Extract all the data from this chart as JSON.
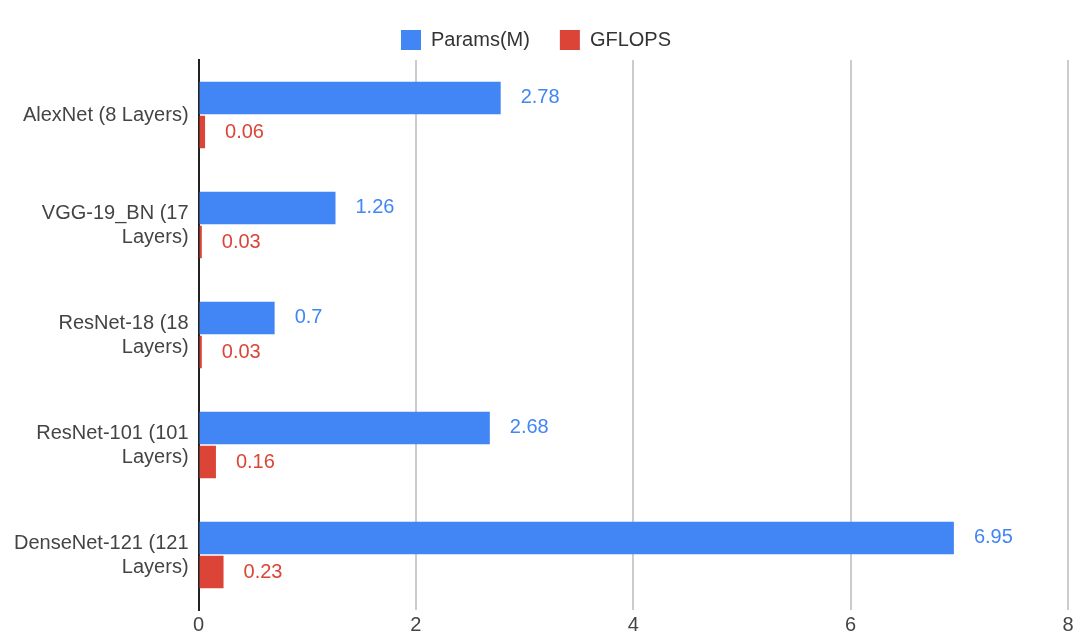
{
  "chart_data": {
    "type": "bar",
    "orientation": "horizontal",
    "categories": [
      "AlexNet (8 Layers)",
      "VGG-19_BN (17 Layers)",
      "ResNet-18 (18 Layers)",
      "ResNet-101 (101 Layers)",
      "DenseNet-121 (121 Layers)"
    ],
    "series": [
      {
        "name": "Params(M)",
        "color": "#4285f4",
        "values": [
          2.78,
          1.26,
          0.7,
          2.68,
          6.95
        ]
      },
      {
        "name": "GFLOPS",
        "color": "#db4437",
        "values": [
          0.06,
          0.03,
          0.03,
          0.16,
          0.23
        ]
      }
    ],
    "xlim": [
      0,
      8
    ],
    "xticks": [
      0,
      2,
      4,
      6,
      8
    ],
    "grid": "x",
    "legend": "top",
    "data_labels": true
  }
}
